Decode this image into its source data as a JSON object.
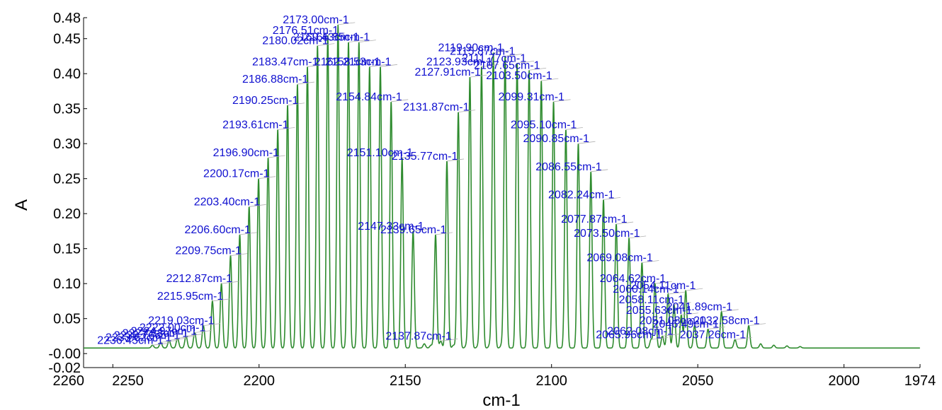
{
  "chart_data": {
    "type": "line",
    "xlabel": "cm-1",
    "ylabel": "A",
    "xlim": [
      2260,
      1974
    ],
    "ylim": [
      -0.02,
      0.48
    ],
    "x_ticks": [
      2260,
      2250,
      2200,
      2150,
      2100,
      2050,
      2000,
      1974
    ],
    "x_tick_labels": [
      "2260",
      "2250",
      "2200",
      "2150",
      "2100",
      "2050",
      "2000",
      "1974"
    ],
    "y_ticks": [
      -0.02,
      0.0,
      0.05,
      0.1,
      0.15,
      0.2,
      0.25,
      0.3,
      0.35,
      0.4,
      0.45,
      0.48
    ],
    "y_tick_labels": [
      "-0.02",
      "-0.00",
      "0.05",
      "0.10",
      "0.15",
      "0.20",
      "0.25",
      "0.30",
      "0.35",
      "0.40",
      "0.45",
      "0.48"
    ],
    "baseline": 0.008,
    "line_color": "#2e8b2e",
    "label_color": "#1010d0",
    "grid": false,
    "peaks": [
      {
        "x": 2236.45,
        "y": 0.012,
        "label": "2236.45cm-1"
      },
      {
        "x": 2233.62,
        "y": 0.016,
        "label": "2233.62cm-1"
      },
      {
        "x": 2230.76,
        "y": 0.019,
        "label": "2230.76cm-1"
      },
      {
        "x": 2227.88,
        "y": 0.022,
        "label": "2227.88cm-1"
      },
      {
        "x": 2224.97,
        "y": 0.025,
        "label": "2224.97cm-1"
      },
      {
        "x": 2222.0,
        "y": 0.03,
        "label": "2222.00cm-1"
      },
      {
        "x": 2219.03,
        "y": 0.04,
        "label": "2219.03cm-1"
      },
      {
        "x": 2215.95,
        "y": 0.075,
        "label": "2215.95cm-1"
      },
      {
        "x": 2212.87,
        "y": 0.1,
        "label": "2212.87cm-1"
      },
      {
        "x": 2209.75,
        "y": 0.14,
        "label": "2209.75cm-1"
      },
      {
        "x": 2206.6,
        "y": 0.17,
        "label": "2206.60cm-1"
      },
      {
        "x": 2203.4,
        "y": 0.21,
        "label": "2203.40cm-1"
      },
      {
        "x": 2200.17,
        "y": 0.25,
        "label": "2200.17cm-1"
      },
      {
        "x": 2196.9,
        "y": 0.28,
        "label": "2196.90cm-1"
      },
      {
        "x": 2193.61,
        "y": 0.32,
        "label": "2193.61cm-1"
      },
      {
        "x": 2190.25,
        "y": 0.355,
        "label": "2190.25cm-1"
      },
      {
        "x": 2186.88,
        "y": 0.385,
        "label": "2186.88cm-1"
      },
      {
        "x": 2183.47,
        "y": 0.41,
        "label": "2183.47cm-1"
      },
      {
        "x": 2180.02,
        "y": 0.44,
        "label": "2180.02cm-1"
      },
      {
        "x": 2176.51,
        "y": 0.455,
        "label": "2176.51cm-1"
      },
      {
        "x": 2173.0,
        "y": 0.47,
        "label": "2173.00cm-1"
      },
      {
        "x": 2169.43,
        "y": 0.445,
        "label": "2169.43cm-1"
      },
      {
        "x": 2165.85,
        "y": 0.445,
        "label": "2165.85cm-1"
      },
      {
        "x": 2162.21,
        "y": 0.41,
        "label": "2162.21cm-1"
      },
      {
        "x": 2158.53,
        "y": 0.41,
        "label": "2158.53cm-1"
      },
      {
        "x": 2154.84,
        "y": 0.36,
        "label": "2154.84cm-1"
      },
      {
        "x": 2151.1,
        "y": 0.28,
        "label": "2151.10cm-1"
      },
      {
        "x": 2147.33,
        "y": 0.175,
        "label": "2147.33cm-1"
      },
      {
        "x": 2139.65,
        "y": 0.17,
        "label": "2139.65cm-1"
      },
      {
        "x": 2137.87,
        "y": 0.018,
        "label": "2137.87cm-1"
      },
      {
        "x": 2135.77,
        "y": 0.275,
        "label": "2135.77cm-1"
      },
      {
        "x": 2131.87,
        "y": 0.345,
        "label": "2131.87cm-1"
      },
      {
        "x": 2127.91,
        "y": 0.395,
        "label": "2127.91cm-1"
      },
      {
        "x": 2123.93,
        "y": 0.41,
        "label": "2123.93cm-1"
      },
      {
        "x": 2119.9,
        "y": 0.43,
        "label": "2119.90cm-1"
      },
      {
        "x": 2115.87,
        "y": 0.425,
        "label": "2115.87cm-1"
      },
      {
        "x": 2111.77,
        "y": 0.415,
        "label": "2111.77cm-1"
      },
      {
        "x": 2107.65,
        "y": 0.405,
        "label": "2107.65cm-1"
      },
      {
        "x": 2103.5,
        "y": 0.39,
        "label": "2103.50cm-1"
      },
      {
        "x": 2099.31,
        "y": 0.36,
        "label": "2099.31cm-1"
      },
      {
        "x": 2095.1,
        "y": 0.32,
        "label": "2095.10cm-1"
      },
      {
        "x": 2090.85,
        "y": 0.3,
        "label": "2090.85cm-1"
      },
      {
        "x": 2086.55,
        "y": 0.26,
        "label": "2086.55cm-1"
      },
      {
        "x": 2082.24,
        "y": 0.22,
        "label": "2082.24cm-1"
      },
      {
        "x": 2077.87,
        "y": 0.185,
        "label": "2077.87cm-1"
      },
      {
        "x": 2073.5,
        "y": 0.165,
        "label": "2073.50cm-1"
      },
      {
        "x": 2069.08,
        "y": 0.13,
        "label": "2069.08cm-1"
      },
      {
        "x": 2065.96,
        "y": 0.02,
        "label": "2065.96cm-1"
      },
      {
        "x": 2064.62,
        "y": 0.1,
        "label": "2064.62cm-1"
      },
      {
        "x": 2062.08,
        "y": 0.025,
        "label": "2062.08cm-1"
      },
      {
        "x": 2060.14,
        "y": 0.085,
        "label": "2060.14cm-1"
      },
      {
        "x": 2058.11,
        "y": 0.07,
        "label": "2058.11cm-1"
      },
      {
        "x": 2055.63,
        "y": 0.055,
        "label": "2055.63cm-1"
      },
      {
        "x": 2054.11,
        "y": 0.09,
        "label": "2054.11cm-1"
      },
      {
        "x": 2051.08,
        "y": 0.04,
        "label": "2051.08cm-1"
      },
      {
        "x": 2046.49,
        "y": 0.035,
        "label": "2046.49cm-1"
      },
      {
        "x": 2041.89,
        "y": 0.06,
        "label": "2041.89cm-1"
      },
      {
        "x": 2037.26,
        "y": 0.02,
        "label": "2037.26cm-1"
      },
      {
        "x": 2032.58,
        "y": 0.04,
        "label": "2032.58cm-1"
      }
    ],
    "minor_peaks": [
      {
        "x": 2143.5,
        "y": 0.014
      },
      {
        "x": 2141.2,
        "y": 0.012
      },
      {
        "x": 2133.5,
        "y": 0.012
      },
      {
        "x": 2129.0,
        "y": 0.013
      },
      {
        "x": 2125.0,
        "y": 0.012
      },
      {
        "x": 2121.0,
        "y": 0.014
      },
      {
        "x": 2117.0,
        "y": 0.013
      },
      {
        "x": 2028.5,
        "y": 0.014
      },
      {
        "x": 2024.0,
        "y": 0.012
      },
      {
        "x": 2019.5,
        "y": 0.011
      },
      {
        "x": 2015.0,
        "y": 0.01
      }
    ]
  }
}
